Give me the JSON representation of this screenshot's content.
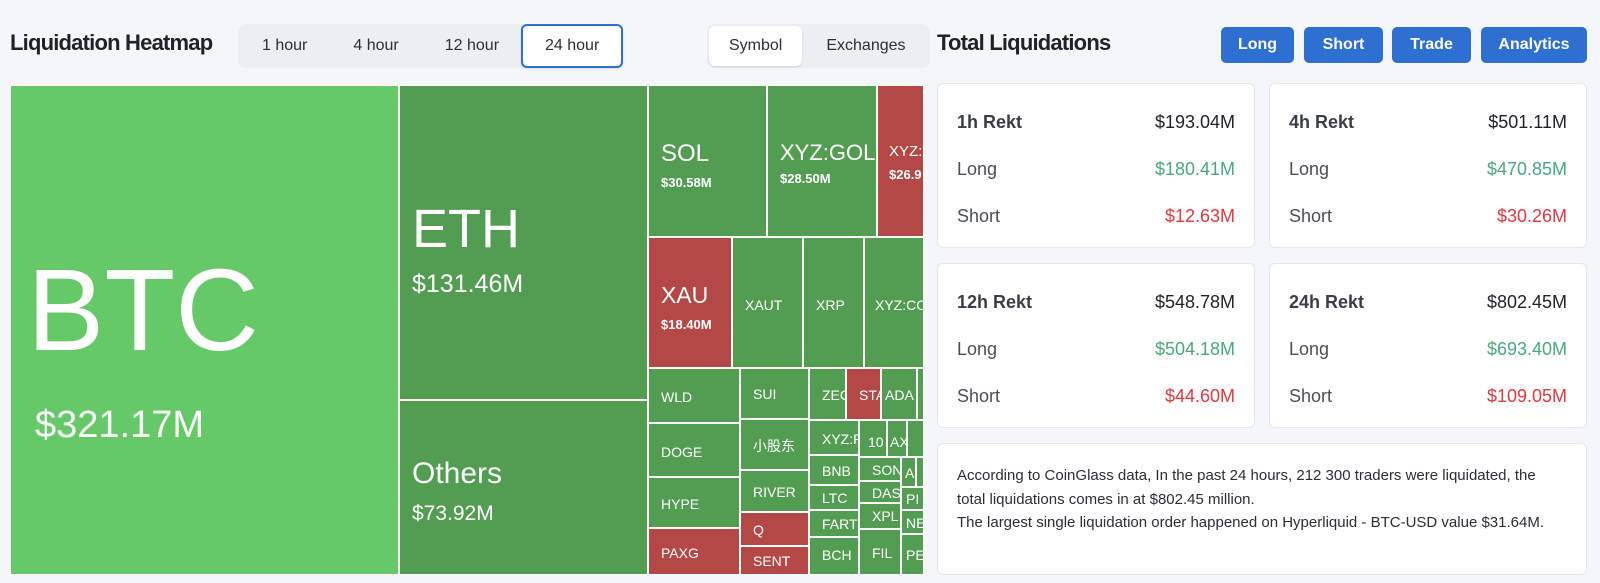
{
  "heatmap": {
    "title": "Liquidation Heatmap",
    "time_tabs": [
      {
        "label": "1 hour",
        "active": false
      },
      {
        "label": "4 hour",
        "active": false
      },
      {
        "label": "12 hour",
        "active": false
      },
      {
        "label": "24 hour",
        "active": true
      }
    ],
    "view_tabs": [
      {
        "label": "Symbol",
        "active": true
      },
      {
        "label": "Exchanges",
        "active": false
      }
    ],
    "colors": {
      "long_dominant": "#539d52",
      "long_dominant_light": "#66c967",
      "short_dominant": "#b44846"
    },
    "tiles": [
      {
        "symbol": "BTC",
        "value": "$321.17M",
        "dominant": "long"
      },
      {
        "symbol": "ETH",
        "value": "$131.46M",
        "dominant": "long"
      },
      {
        "symbol": "Others",
        "value": "$73.92M",
        "dominant": "long"
      },
      {
        "symbol": "SOL",
        "value": "$30.58M",
        "dominant": "long"
      },
      {
        "symbol": "XYZ:GOLD",
        "value": "$28.50M",
        "dominant": "long"
      },
      {
        "symbol": "XYZ:S",
        "value": "$26.9",
        "dominant": "short"
      },
      {
        "symbol": "XAU",
        "value": "$18.40M",
        "dominant": "short"
      },
      {
        "symbol": "XAUT",
        "value": "",
        "dominant": "long"
      },
      {
        "symbol": "XRP",
        "value": "",
        "dominant": "long"
      },
      {
        "symbol": "XYZ:CO",
        "value": "",
        "dominant": "long"
      },
      {
        "symbol": "WLD",
        "value": "",
        "dominant": "long"
      },
      {
        "symbol": "SUI",
        "value": "",
        "dominant": "long"
      },
      {
        "symbol": "ZEC",
        "value": "",
        "dominant": "long"
      },
      {
        "symbol": "STA",
        "value": "",
        "dominant": "short"
      },
      {
        "symbol": "ADA",
        "value": "",
        "dominant": "long"
      },
      {
        "symbol": "",
        "value": "",
        "dominant": "long"
      },
      {
        "symbol": "DOGE",
        "value": "",
        "dominant": "long"
      },
      {
        "symbol": "小股东",
        "value": "",
        "dominant": "long"
      },
      {
        "symbol": "XYZ:P",
        "value": "",
        "dominant": "long"
      },
      {
        "symbol": "10",
        "value": "",
        "dominant": "long"
      },
      {
        "symbol": "AX",
        "value": "",
        "dominant": "long"
      },
      {
        "symbol": "",
        "value": "",
        "dominant": "long"
      },
      {
        "symbol": "BNB",
        "value": "",
        "dominant": "long"
      },
      {
        "symbol": "HYPE",
        "value": "",
        "dominant": "long"
      },
      {
        "symbol": "RIVER",
        "value": "",
        "dominant": "long"
      },
      {
        "symbol": "LTC",
        "value": "",
        "dominant": "long"
      },
      {
        "symbol": "SON",
        "value": "",
        "dominant": "long"
      },
      {
        "symbol": "A",
        "value": "",
        "dominant": "long"
      },
      {
        "symbol": "",
        "value": "",
        "dominant": "long"
      },
      {
        "symbol": "DAS",
        "value": "",
        "dominant": "long"
      },
      {
        "symbol": "Q",
        "value": "",
        "dominant": "short"
      },
      {
        "symbol": "FARTC",
        "value": "",
        "dominant": "long"
      },
      {
        "symbol": "PI",
        "value": "",
        "dominant": "long"
      },
      {
        "symbol": "XPL",
        "value": "",
        "dominant": "long"
      },
      {
        "symbol": "NE",
        "value": "",
        "dominant": "long"
      },
      {
        "symbol": "PAXG",
        "value": "",
        "dominant": "short"
      },
      {
        "symbol": "SENT",
        "value": "",
        "dominant": "short"
      },
      {
        "symbol": "BCH",
        "value": "",
        "dominant": "long"
      },
      {
        "symbol": "FIL",
        "value": "",
        "dominant": "long"
      },
      {
        "symbol": "PE",
        "value": "",
        "dominant": "long"
      }
    ]
  },
  "totals": {
    "title": "Total Liquidations",
    "buttons": [
      "Long",
      "Short",
      "Trade",
      "Analytics"
    ],
    "cards": [
      {
        "label": "1h Rekt",
        "total": "$193.04M",
        "long_label": "Long",
        "long": "$180.41M",
        "short_label": "Short",
        "short": "$12.63M"
      },
      {
        "label": "4h Rekt",
        "total": "$501.11M",
        "long_label": "Long",
        "long": "$470.85M",
        "short_label": "Short",
        "short": "$30.26M"
      },
      {
        "label": "12h Rekt",
        "total": "$548.78M",
        "long_label": "Long",
        "long": "$504.18M",
        "short_label": "Short",
        "short": "$44.60M"
      },
      {
        "label": "24h Rekt",
        "total": "$802.45M",
        "long_label": "Long",
        "long": "$693.40M",
        "short_label": "Short",
        "short": "$109.05M"
      }
    ],
    "summary": [
      "According to CoinGlass data, In the past 24 hours, 212 300 traders were liquidated, the total liquidations comes in at $802.45 million.",
      "The largest single liquidation order happened on Hyperliquid - BTC-USD value $31.64M."
    ]
  }
}
